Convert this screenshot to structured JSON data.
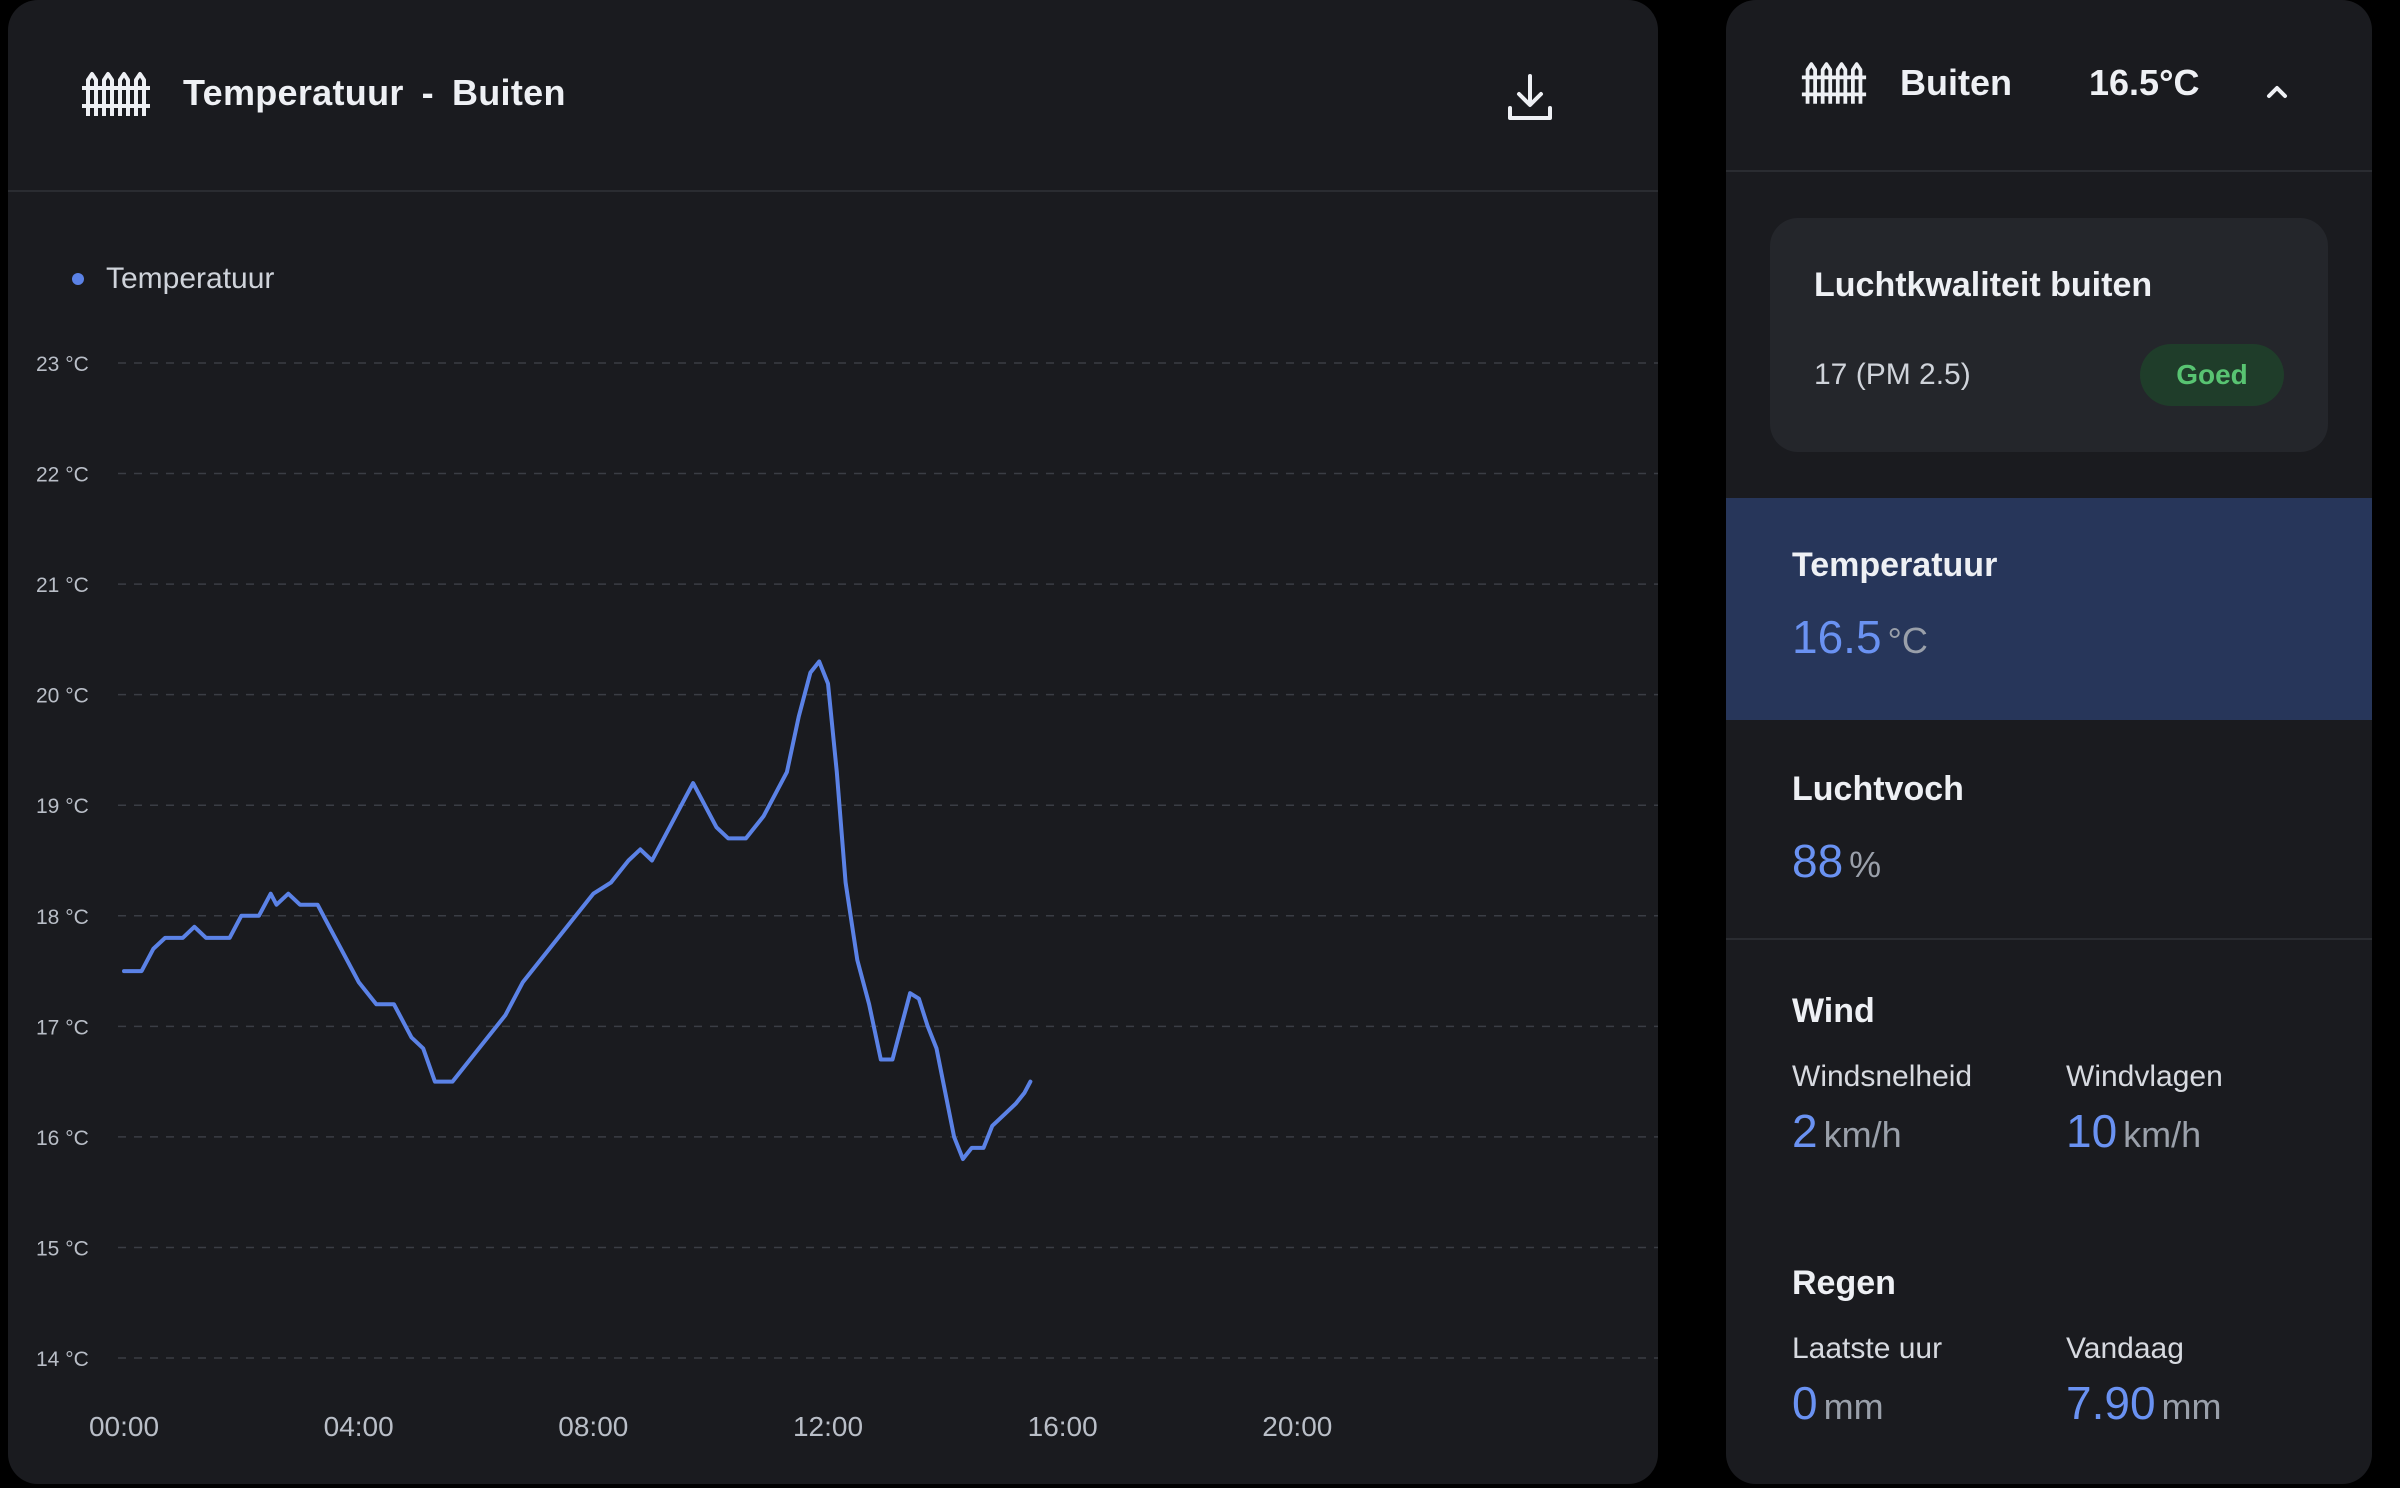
{
  "chart_panel": {
    "title": "Temperatuur",
    "separator": "-",
    "location": "Buiten"
  },
  "side_panel": {
    "name": "Buiten",
    "temperature": "16.5°C",
    "air_quality": {
      "title": "Luchtkwaliteit buiten",
      "value": "17 (PM 2.5)",
      "badge": "Goed"
    },
    "temperature_tile": {
      "label": "Temperatuur",
      "value": "16.5",
      "unit": "°C"
    },
    "humidity_tile": {
      "label": "Luchtvoch",
      "value": "88",
      "unit": "%"
    },
    "wind_tile": {
      "label": "Wind",
      "speed_label": "Windsnelheid",
      "speed_value": "2",
      "speed_unit": "km/h",
      "gust_label": "Windvlagen",
      "gust_value": "10",
      "gust_unit": "km/h"
    },
    "rain_tile": {
      "label": "Regen",
      "last_hour_label": "Laatste uur",
      "last_hour_value": "0",
      "last_hour_unit": "mm",
      "today_label": "Vandaag",
      "today_value": "7.90",
      "today_unit": "mm"
    }
  },
  "colors": {
    "line": "#5b82e6",
    "accent_value": "#6a92f2",
    "badge_good": "#58c472",
    "selected_tile": "#27365a"
  },
  "chart_data": {
    "type": "line",
    "series": [
      {
        "name": "Temperatuur",
        "points": [
          [
            0.0,
            17.5
          ],
          [
            0.3,
            17.5
          ],
          [
            0.5,
            17.7
          ],
          [
            0.7,
            17.8
          ],
          [
            1.0,
            17.8
          ],
          [
            1.2,
            17.9
          ],
          [
            1.4,
            17.8
          ],
          [
            1.8,
            17.8
          ],
          [
            2.0,
            18.0
          ],
          [
            2.3,
            18.0
          ],
          [
            2.5,
            18.2
          ],
          [
            2.6,
            18.1
          ],
          [
            2.8,
            18.2
          ],
          [
            3.0,
            18.1
          ],
          [
            3.3,
            18.1
          ],
          [
            3.5,
            17.9
          ],
          [
            3.7,
            17.7
          ],
          [
            4.0,
            17.4
          ],
          [
            4.3,
            17.2
          ],
          [
            4.6,
            17.2
          ],
          [
            4.9,
            16.9
          ],
          [
            5.1,
            16.8
          ],
          [
            5.3,
            16.5
          ],
          [
            5.6,
            16.5
          ],
          [
            5.9,
            16.7
          ],
          [
            6.2,
            16.9
          ],
          [
            6.5,
            17.1
          ],
          [
            6.8,
            17.4
          ],
          [
            7.1,
            17.6
          ],
          [
            7.4,
            17.8
          ],
          [
            7.7,
            18.0
          ],
          [
            8.0,
            18.2
          ],
          [
            8.3,
            18.3
          ],
          [
            8.6,
            18.5
          ],
          [
            8.8,
            18.6
          ],
          [
            9.0,
            18.5
          ],
          [
            9.3,
            18.8
          ],
          [
            9.5,
            19.0
          ],
          [
            9.7,
            19.2
          ],
          [
            9.9,
            19.0
          ],
          [
            10.1,
            18.8
          ],
          [
            10.3,
            18.7
          ],
          [
            10.6,
            18.7
          ],
          [
            10.9,
            18.9
          ],
          [
            11.1,
            19.1
          ],
          [
            11.3,
            19.3
          ],
          [
            11.5,
            19.8
          ],
          [
            11.7,
            20.2
          ],
          [
            11.85,
            20.3
          ],
          [
            12.0,
            20.1
          ],
          [
            12.15,
            19.3
          ],
          [
            12.3,
            18.3
          ],
          [
            12.5,
            17.6
          ],
          [
            12.7,
            17.2
          ],
          [
            12.9,
            16.7
          ],
          [
            13.1,
            16.7
          ],
          [
            13.25,
            17.0
          ],
          [
            13.4,
            17.3
          ],
          [
            13.55,
            17.25
          ],
          [
            13.7,
            17.0
          ],
          [
            13.85,
            16.8
          ],
          [
            14.0,
            16.4
          ],
          [
            14.15,
            16.0
          ],
          [
            14.3,
            15.8
          ],
          [
            14.45,
            15.9
          ],
          [
            14.65,
            15.9
          ],
          [
            14.8,
            16.1
          ],
          [
            15.0,
            16.2
          ],
          [
            15.2,
            16.3
          ],
          [
            15.35,
            16.4
          ],
          [
            15.45,
            16.5
          ]
        ]
      }
    ],
    "x_ticks": [
      "00:00",
      "04:00",
      "08:00",
      "12:00",
      "16:00",
      "20:00"
    ],
    "y_ticks": [
      "23 °C",
      "22 °C",
      "21 °C",
      "20 °C",
      "19 °C",
      "18 °C",
      "17 °C",
      "16 °C",
      "15 °C",
      "14 °C"
    ],
    "xlim": [
      0,
      24
    ],
    "ylim": [
      14,
      23
    ],
    "grid": true,
    "legend": "top-left"
  }
}
